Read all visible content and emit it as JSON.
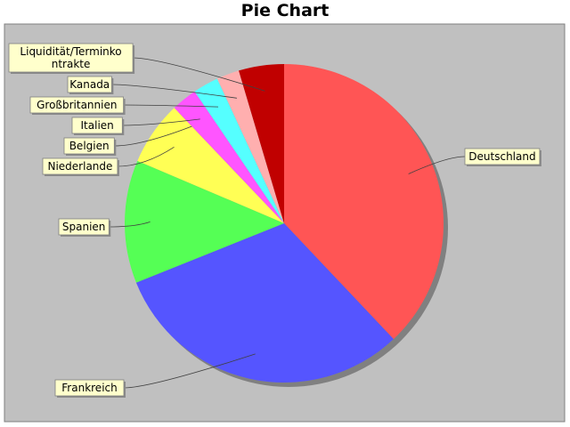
{
  "chart_data": {
    "type": "pie",
    "title": "Pie Chart",
    "legend": "none",
    "slices": [
      {
        "label": "Deutschland",
        "value": 38.0,
        "color": "#ff5555"
      },
      {
        "label": "Frankreich",
        "value": 31.0,
        "color": "#5555ff"
      },
      {
        "label": "Spanien",
        "value": 12.5,
        "color": "#55ff55"
      },
      {
        "label": "Niederlande",
        "value": 6.5,
        "color": "#ffff55"
      },
      {
        "label": "Belgien",
        "value": 0.01,
        "color": "#ff55ff"
      },
      {
        "label": "Italien",
        "value": 2.6,
        "color": "#ff55ff"
      },
      {
        "label": "Großbritannien",
        "value": 2.6,
        "color": "#55ffff"
      },
      {
        "label": "Kanada",
        "value": 2.3,
        "color": "#ffafaf"
      },
      {
        "label": "Liquidität/Terminkontrakte",
        "value": 4.6,
        "color": "#c00000"
      }
    ],
    "colors": {
      "plot_background": "#c0c0c0",
      "label_background": "#ffffcc"
    }
  }
}
